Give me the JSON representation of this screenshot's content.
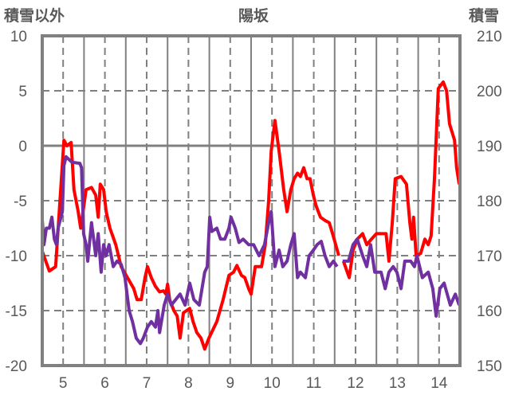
{
  "chart_data": {
    "type": "line",
    "title": "陽坂",
    "ylabel_left": "積雪以外",
    "ylabel_right": "積雪",
    "xlim": [
      4.5,
      14.5
    ],
    "ylim_left": [
      -20,
      10
    ],
    "ylim_right": [
      150,
      210
    ],
    "x_ticks": [
      "5",
      "6",
      "7",
      "8",
      "9",
      "10",
      "11",
      "12",
      "13",
      "14"
    ],
    "y_ticks_left": [
      "10",
      "5",
      "0",
      "-5",
      "-10",
      "-15",
      "-20"
    ],
    "y_ticks_right": [
      "210",
      "200",
      "190",
      "180",
      "170",
      "160",
      "150"
    ],
    "grid": true,
    "colors": {
      "red": "#ff0000",
      "purple": "#7030a0",
      "axis": "#808080",
      "text": "#595959"
    },
    "series": [
      {
        "name": "red",
        "color": "#ff0000",
        "axis": "left",
        "points": [
          [
            4.5,
            -9.6
          ],
          [
            4.67,
            -11.4
          ],
          [
            4.82,
            -11
          ],
          [
            5.02,
            0.5
          ],
          [
            5.09,
            0
          ],
          [
            5.19,
            0.3
          ],
          [
            5.26,
            -4
          ],
          [
            5.36,
            -6
          ],
          [
            5.42,
            -7.5
          ],
          [
            5.55,
            -4
          ],
          [
            5.68,
            -3.8
          ],
          [
            5.78,
            -4.5
          ],
          [
            5.84,
            -6.5
          ],
          [
            5.89,
            -3.5
          ],
          [
            5.97,
            -4
          ],
          [
            6.03,
            -6
          ],
          [
            6.12,
            -7.5
          ],
          [
            6.26,
            -9
          ],
          [
            6.39,
            -11
          ],
          [
            6.54,
            -12
          ],
          [
            6.69,
            -13
          ],
          [
            6.77,
            -14
          ],
          [
            6.87,
            -14
          ],
          [
            6.96,
            -12
          ],
          [
            7.02,
            -11
          ],
          [
            7.11,
            -12
          ],
          [
            7.21,
            -12.8
          ],
          [
            7.31,
            -13.3
          ],
          [
            7.4,
            -13.2
          ],
          [
            7.46,
            -13.5
          ],
          [
            7.5,
            -12.6
          ],
          [
            7.55,
            -14
          ],
          [
            7.65,
            -15
          ],
          [
            7.73,
            -15.5
          ],
          [
            7.8,
            -17.5
          ],
          [
            7.88,
            -15.2
          ],
          [
            8.03,
            -14.8
          ],
          [
            8.11,
            -16
          ],
          [
            8.2,
            -17
          ],
          [
            8.3,
            -17.5
          ],
          [
            8.39,
            -18.5
          ],
          [
            8.49,
            -17.5
          ],
          [
            8.68,
            -16
          ],
          [
            8.83,
            -14
          ],
          [
            8.97,
            -11.8
          ],
          [
            9.08,
            -11.5
          ],
          [
            9.16,
            -10.9
          ],
          [
            9.27,
            -11.8
          ],
          [
            9.35,
            -12
          ],
          [
            9.44,
            -13
          ],
          [
            9.5,
            -13.5
          ],
          [
            9.6,
            -11
          ],
          [
            9.75,
            -11
          ],
          [
            9.84,
            -9
          ],
          [
            9.92,
            -5
          ],
          [
            9.98,
            -0.5
          ],
          [
            10.07,
            2.3
          ],
          [
            10.17,
            -0.5
          ],
          [
            10.28,
            -4
          ],
          [
            10.36,
            -6
          ],
          [
            10.45,
            -4
          ],
          [
            10.53,
            -3
          ],
          [
            10.61,
            -2.5
          ],
          [
            10.68,
            -2.8
          ],
          [
            10.76,
            -2
          ],
          [
            10.84,
            -3
          ],
          [
            10.91,
            -3
          ],
          [
            10.99,
            -4.5
          ],
          [
            11.06,
            -5.5
          ],
          [
            11.16,
            -6.5
          ],
          [
            11.27,
            -6.8
          ],
          [
            11.37,
            -7
          ],
          [
            11.45,
            -8
          ],
          [
            11.6,
            -10
          ],
          [
            11.65,
            null
          ],
          [
            11.71,
            -10.5
          ],
          [
            11.85,
            -12
          ],
          [
            11.94,
            -9.5
          ],
          [
            12.04,
            -8.5
          ],
          [
            12.17,
            -8
          ],
          [
            12.27,
            -9
          ],
          [
            12.38,
            -8.5
          ],
          [
            12.5,
            -8
          ],
          [
            12.61,
            -8
          ],
          [
            12.73,
            -8
          ],
          [
            12.8,
            -10.5
          ],
          [
            12.88,
            -7
          ],
          [
            12.95,
            -3
          ],
          [
            13.09,
            -2.8
          ],
          [
            13.22,
            -3.5
          ],
          [
            13.3,
            -7
          ],
          [
            13.35,
            -8.5
          ],
          [
            13.39,
            -6.5
          ],
          [
            13.45,
            -10
          ],
          [
            13.56,
            -9.8
          ],
          [
            13.66,
            -8.5
          ],
          [
            13.74,
            -9
          ],
          [
            13.81,
            -8.2
          ],
          [
            13.89,
            -3
          ],
          [
            13.98,
            5.2
          ],
          [
            14.1,
            5.8
          ],
          [
            14.18,
            5
          ],
          [
            14.25,
            2
          ],
          [
            14.37,
            0.5
          ],
          [
            14.42,
            -2
          ],
          [
            14.48,
            -3.5
          ]
        ]
      },
      {
        "name": "purple",
        "color": "#7030a0",
        "axis": "left",
        "points": [
          [
            4.5,
            -6.7
          ],
          [
            4.54,
            -9
          ],
          [
            4.6,
            -7.5
          ],
          [
            4.67,
            -7.5
          ],
          [
            4.73,
            -6.5
          ],
          [
            4.79,
            -8.5
          ],
          [
            4.84,
            -9
          ],
          [
            4.88,
            -7.5
          ],
          [
            4.98,
            -6
          ],
          [
            5.02,
            -1.8
          ],
          [
            5.07,
            -1
          ],
          [
            5.21,
            -1.5
          ],
          [
            5.4,
            -1.6
          ],
          [
            5.44,
            -2
          ],
          [
            5.49,
            -8
          ],
          [
            5.55,
            -9
          ],
          [
            5.59,
            -10.5
          ],
          [
            5.68,
            -7
          ],
          [
            5.78,
            -10
          ],
          [
            5.84,
            -8
          ],
          [
            5.91,
            -11.5
          ],
          [
            5.97,
            -9
          ],
          [
            6.03,
            -10
          ],
          [
            6.1,
            -9
          ],
          [
            6.2,
            -11
          ],
          [
            6.29,
            -10.5
          ],
          [
            6.39,
            -10.8
          ],
          [
            6.48,
            -12
          ],
          [
            6.58,
            -15
          ],
          [
            6.66,
            -16
          ],
          [
            6.75,
            -17.5
          ],
          [
            6.85,
            -18
          ],
          [
            6.92,
            -17.5
          ],
          [
            7.02,
            -16.5
          ],
          [
            7.11,
            -16
          ],
          [
            7.21,
            -16.5
          ],
          [
            7.27,
            -15
          ],
          [
            7.31,
            -17
          ],
          [
            7.42,
            -14.5
          ],
          [
            7.5,
            -13.5
          ],
          [
            7.59,
            -14.5
          ],
          [
            7.8,
            -13.5
          ],
          [
            7.92,
            -14.5
          ],
          [
            8.03,
            -12.5
          ],
          [
            8.13,
            -14
          ],
          [
            8.26,
            -14.5
          ],
          [
            8.39,
            -11.5
          ],
          [
            8.45,
            -11
          ],
          [
            8.51,
            -6.5
          ],
          [
            8.56,
            -7.8
          ],
          [
            8.68,
            -7.5
          ],
          [
            8.77,
            -8.5
          ],
          [
            8.87,
            -8.5
          ],
          [
            8.97,
            -7.5
          ],
          [
            9.02,
            -6.5
          ],
          [
            9.12,
            -7.5
          ],
          [
            9.21,
            -8.8
          ],
          [
            9.31,
            -8.5
          ],
          [
            9.44,
            -9
          ],
          [
            9.56,
            -9
          ],
          [
            9.69,
            -10
          ],
          [
            9.82,
            -9
          ],
          [
            9.92,
            -7
          ],
          [
            9.98,
            -6
          ],
          [
            10.07,
            -11
          ],
          [
            10.17,
            -9.5
          ],
          [
            10.26,
            -11
          ],
          [
            10.36,
            -10.5
          ],
          [
            10.45,
            -9
          ],
          [
            10.53,
            -8
          ],
          [
            10.61,
            -12
          ],
          [
            10.68,
            -11.5
          ],
          [
            10.8,
            -12
          ],
          [
            10.89,
            -10
          ],
          [
            10.99,
            -9.5
          ],
          [
            11.08,
            -9
          ],
          [
            11.18,
            -8.7
          ],
          [
            11.27,
            -10
          ],
          [
            11.37,
            -11
          ],
          [
            11.47,
            -10.5
          ],
          [
            11.56,
            -11
          ],
          [
            11.63,
            null
          ],
          [
            11.69,
            -10.5
          ],
          [
            11.83,
            -10.5
          ],
          [
            11.94,
            -9
          ],
          [
            12.04,
            -8.5
          ],
          [
            12.17,
            -10
          ],
          [
            12.27,
            -11
          ],
          [
            12.36,
            -9
          ],
          [
            12.46,
            -11.5
          ],
          [
            12.61,
            -11.5
          ],
          [
            12.71,
            -13
          ],
          [
            12.8,
            -11.5
          ],
          [
            12.9,
            -11
          ],
          [
            12.99,
            -11.5
          ],
          [
            13.09,
            -13
          ],
          [
            13.18,
            -10.5
          ],
          [
            13.32,
            -10.5
          ],
          [
            13.41,
            -11
          ],
          [
            13.47,
            -10
          ],
          [
            13.6,
            -12
          ],
          [
            13.74,
            -11.5
          ],
          [
            13.85,
            -13
          ],
          [
            13.93,
            -15.5
          ],
          [
            14.02,
            -13
          ],
          [
            14.12,
            -12.5
          ],
          [
            14.27,
            -14.5
          ],
          [
            14.39,
            -13.5
          ],
          [
            14.48,
            -14.5
          ]
        ]
      }
    ]
  }
}
